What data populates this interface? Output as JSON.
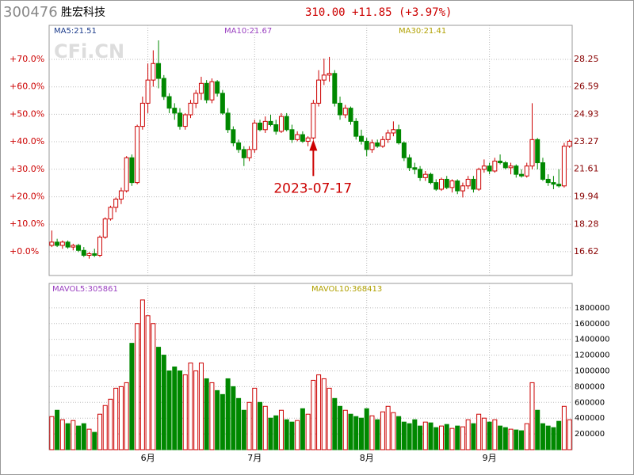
{
  "header": {
    "code": "300476",
    "name": "胜宏科技",
    "quote": "310.00 +11.85 (+3.97%)"
  },
  "chart_data": [
    {
      "type": "candlestick",
      "watermark": "CFi.CN",
      "legend": [
        {
          "label": "MA5:21.51",
          "color": "#1a3a8a"
        },
        {
          "label": "MA10:21.67",
          "color": "#9a40c0"
        },
        {
          "label": "MA30:21.41",
          "color": "#b0a000"
        }
      ],
      "annotation": {
        "text": "2023-07-17",
        "at": 49,
        "color": "#cc0000"
      },
      "up_color": "#cc0000",
      "down_color": "#008800",
      "ylim": [
        15.18,
        30.31
      ],
      "yticks": [
        16.62,
        18.28,
        19.94,
        21.61,
        23.27,
        24.93,
        26.59,
        28.25
      ],
      "y2lim": [
        -8.66,
        82.4
      ],
      "y2ticks": [
        {
          "value": 0,
          "label": "+0.0%"
        },
        {
          "value": 10,
          "label": "+10.0%"
        },
        {
          "value": 20,
          "label": "+20.0%"
        },
        {
          "value": 30,
          "label": "+30.0%"
        },
        {
          "value": 40,
          "label": "+40.0%"
        },
        {
          "value": 50,
          "label": "+50.0%"
        },
        {
          "value": 60,
          "label": "+60.0%"
        },
        {
          "value": 70,
          "label": "+70.0%"
        }
      ],
      "grid": true,
      "open": [
        17.0,
        17.2,
        17.0,
        17.2,
        16.9,
        17.0,
        16.7,
        16.4,
        16.5,
        16.4,
        17.5,
        18.6,
        19.3,
        19.8,
        20.3,
        22.3,
        20.8,
        24.2,
        25.6,
        27.0,
        28.0,
        27.1,
        26.0,
        25.3,
        25.0,
        24.2,
        24.9,
        25.6,
        26.2,
        26.8,
        25.8,
        26.9,
        26.2,
        25.0,
        24.0,
        23.2,
        22.8,
        22.3,
        22.8,
        24.4,
        24.0,
        24.5,
        24.3,
        23.9,
        24.8,
        24.0,
        23.4,
        23.7,
        23.3,
        23.5,
        25.6,
        27.0,
        27.3,
        27.4,
        25.6,
        24.9,
        25.3,
        24.5,
        23.6,
        23.3,
        22.8,
        23.2,
        23.0,
        23.4,
        23.8,
        24.0,
        23.2,
        22.3,
        21.7,
        21.6,
        21.1,
        21.3,
        20.8,
        20.4,
        21.0,
        20.5,
        20.9,
        20.3,
        20.6,
        21.0,
        20.4,
        21.6,
        21.8,
        21.5,
        22.1,
        22.0,
        21.7,
        21.8,
        21.3,
        21.2,
        21.8,
        23.4,
        22.0,
        21.0,
        20.8,
        20.7,
        20.6,
        23.0
      ],
      "high": [
        17.9,
        17.4,
        17.3,
        17.3,
        17.1,
        17.1,
        16.9,
        16.6,
        16.8,
        17.6,
        18.7,
        19.4,
        19.9,
        20.5,
        22.4,
        22.5,
        24.3,
        26.0,
        28.0,
        28.8,
        29.4,
        27.3,
        26.2,
        25.6,
        25.3,
        25.0,
        25.8,
        26.4,
        27.2,
        27.0,
        27.1,
        27.0,
        26.4,
        25.3,
        24.2,
        23.4,
        23.0,
        23.0,
        24.6,
        24.6,
        24.8,
        24.9,
        24.6,
        25.0,
        25.0,
        24.3,
        23.9,
        23.9,
        23.6,
        25.8,
        27.6,
        28.3,
        28.4,
        27.6,
        26.0,
        25.5,
        25.4,
        24.7,
        24.0,
        23.5,
        23.4,
        23.4,
        23.6,
        24.0,
        24.5,
        24.3,
        23.3,
        22.5,
        22.0,
        21.8,
        21.5,
        21.4,
        21.0,
        21.1,
        21.2,
        21.0,
        21.0,
        20.8,
        21.2,
        21.2,
        21.7,
        22.2,
        22.0,
        22.3,
        22.5,
        22.1,
        22.0,
        21.9,
        21.6,
        22.0,
        25.6,
        23.5,
        22.3,
        21.3,
        21.2,
        21.6,
        23.2,
        23.4
      ],
      "low": [
        16.9,
        16.9,
        16.8,
        16.8,
        16.7,
        16.6,
        16.3,
        16.2,
        16.3,
        16.3,
        17.4,
        18.5,
        19.0,
        19.5,
        20.2,
        20.6,
        20.7,
        24.0,
        25.0,
        26.6,
        26.5,
        25.8,
        25.0,
        24.6,
        24.0,
        24.0,
        24.7,
        25.3,
        25.8,
        25.6,
        25.6,
        26.0,
        24.9,
        23.8,
        23.0,
        22.6,
        21.8,
        22.1,
        22.6,
        23.9,
        23.8,
        24.2,
        23.7,
        23.8,
        23.9,
        23.2,
        23.3,
        23.2,
        23.0,
        23.4,
        25.4,
        26.7,
        26.9,
        25.4,
        24.6,
        24.7,
        24.3,
        23.4,
        23.1,
        22.4,
        22.6,
        22.9,
        22.9,
        23.2,
        23.6,
        23.1,
        22.1,
        21.5,
        21.3,
        20.9,
        20.9,
        20.7,
        20.3,
        20.3,
        20.4,
        20.2,
        20.1,
        19.9,
        20.4,
        20.2,
        20.3,
        21.4,
        21.3,
        21.4,
        21.9,
        21.6,
        21.3,
        21.1,
        21.1,
        21.1,
        21.6,
        21.6,
        20.9,
        20.6,
        20.4,
        20.5,
        20.5,
        22.9
      ],
      "close": [
        17.2,
        17.0,
        17.2,
        16.9,
        17.0,
        16.7,
        16.4,
        16.5,
        16.4,
        17.5,
        18.6,
        19.3,
        19.8,
        20.3,
        22.3,
        20.8,
        24.2,
        25.6,
        27.0,
        28.0,
        27.1,
        26.0,
        25.3,
        25.0,
        24.2,
        24.9,
        25.6,
        26.2,
        26.8,
        25.8,
        26.9,
        26.2,
        25.0,
        24.0,
        23.2,
        22.8,
        22.3,
        22.8,
        24.4,
        24.0,
        24.5,
        24.3,
        23.9,
        24.8,
        24.0,
        23.4,
        23.7,
        23.3,
        23.5,
        25.6,
        27.0,
        27.3,
        27.4,
        25.6,
        24.9,
        25.3,
        24.5,
        23.6,
        23.3,
        22.8,
        23.2,
        23.0,
        23.4,
        23.8,
        24.0,
        23.2,
        22.3,
        21.7,
        21.6,
        21.1,
        21.3,
        20.8,
        20.4,
        21.0,
        20.5,
        20.9,
        20.3,
        20.6,
        21.0,
        20.4,
        21.6,
        21.8,
        21.5,
        22.1,
        22.0,
        21.7,
        21.8,
        21.3,
        21.2,
        21.8,
        23.4,
        22.0,
        21.0,
        20.8,
        20.7,
        20.6,
        23.0,
        23.3
      ]
    },
    {
      "type": "bar",
      "legend": [
        {
          "label": "MAVOL5:305861",
          "color": "#9a40c0"
        },
        {
          "label": "MAVOL10:368413",
          "color": "#b0a000"
        }
      ],
      "ylim": [
        0,
        2110000
      ],
      "yticks": [
        200000,
        400000,
        600000,
        800000,
        1000000,
        1200000,
        1400000,
        1600000,
        1800000
      ],
      "grid": true,
      "categories": [
        null,
        null,
        null,
        null,
        null,
        null,
        null,
        null,
        null,
        null,
        null,
        null,
        null,
        null,
        null,
        null,
        null,
        null,
        "6月",
        null,
        null,
        null,
        null,
        null,
        null,
        null,
        null,
        null,
        null,
        null,
        null,
        null,
        null,
        null,
        null,
        null,
        null,
        null,
        "7月",
        null,
        null,
        null,
        null,
        null,
        null,
        null,
        null,
        null,
        null,
        null,
        null,
        null,
        null,
        null,
        null,
        null,
        null,
        null,
        null,
        "8月",
        null,
        null,
        null,
        null,
        null,
        null,
        null,
        null,
        null,
        null,
        null,
        null,
        null,
        null,
        null,
        null,
        null,
        null,
        null,
        null,
        null,
        null,
        "9月",
        null,
        null,
        null,
        null,
        null,
        null,
        null,
        null,
        null,
        null,
        null,
        null,
        null,
        null,
        null
      ],
      "values": [
        420000,
        500000,
        380000,
        330000,
        370000,
        300000,
        330000,
        260000,
        220000,
        450000,
        560000,
        640000,
        780000,
        800000,
        850000,
        1350000,
        1600000,
        1900000,
        1700000,
        1600000,
        1300000,
        1200000,
        1000000,
        1050000,
        1000000,
        950000,
        1100000,
        1000000,
        1100000,
        900000,
        850000,
        750000,
        700000,
        900000,
        800000,
        650000,
        500000,
        600000,
        780000,
        600000,
        550000,
        400000,
        430000,
        500000,
        380000,
        350000,
        370000,
        520000,
        450000,
        880000,
        950000,
        900000,
        780000,
        650000,
        550000,
        500000,
        450000,
        420000,
        400000,
        520000,
        430000,
        380000,
        480000,
        550000,
        470000,
        420000,
        350000,
        330000,
        380000,
        300000,
        350000,
        340000,
        280000,
        300000,
        320000,
        270000,
        300000,
        290000,
        380000,
        330000,
        450000,
        400000,
        350000,
        380000,
        300000,
        280000,
        260000,
        250000,
        240000,
        330000,
        850000,
        500000,
        330000,
        300000,
        280000,
        360000,
        550000,
        380000
      ]
    }
  ]
}
